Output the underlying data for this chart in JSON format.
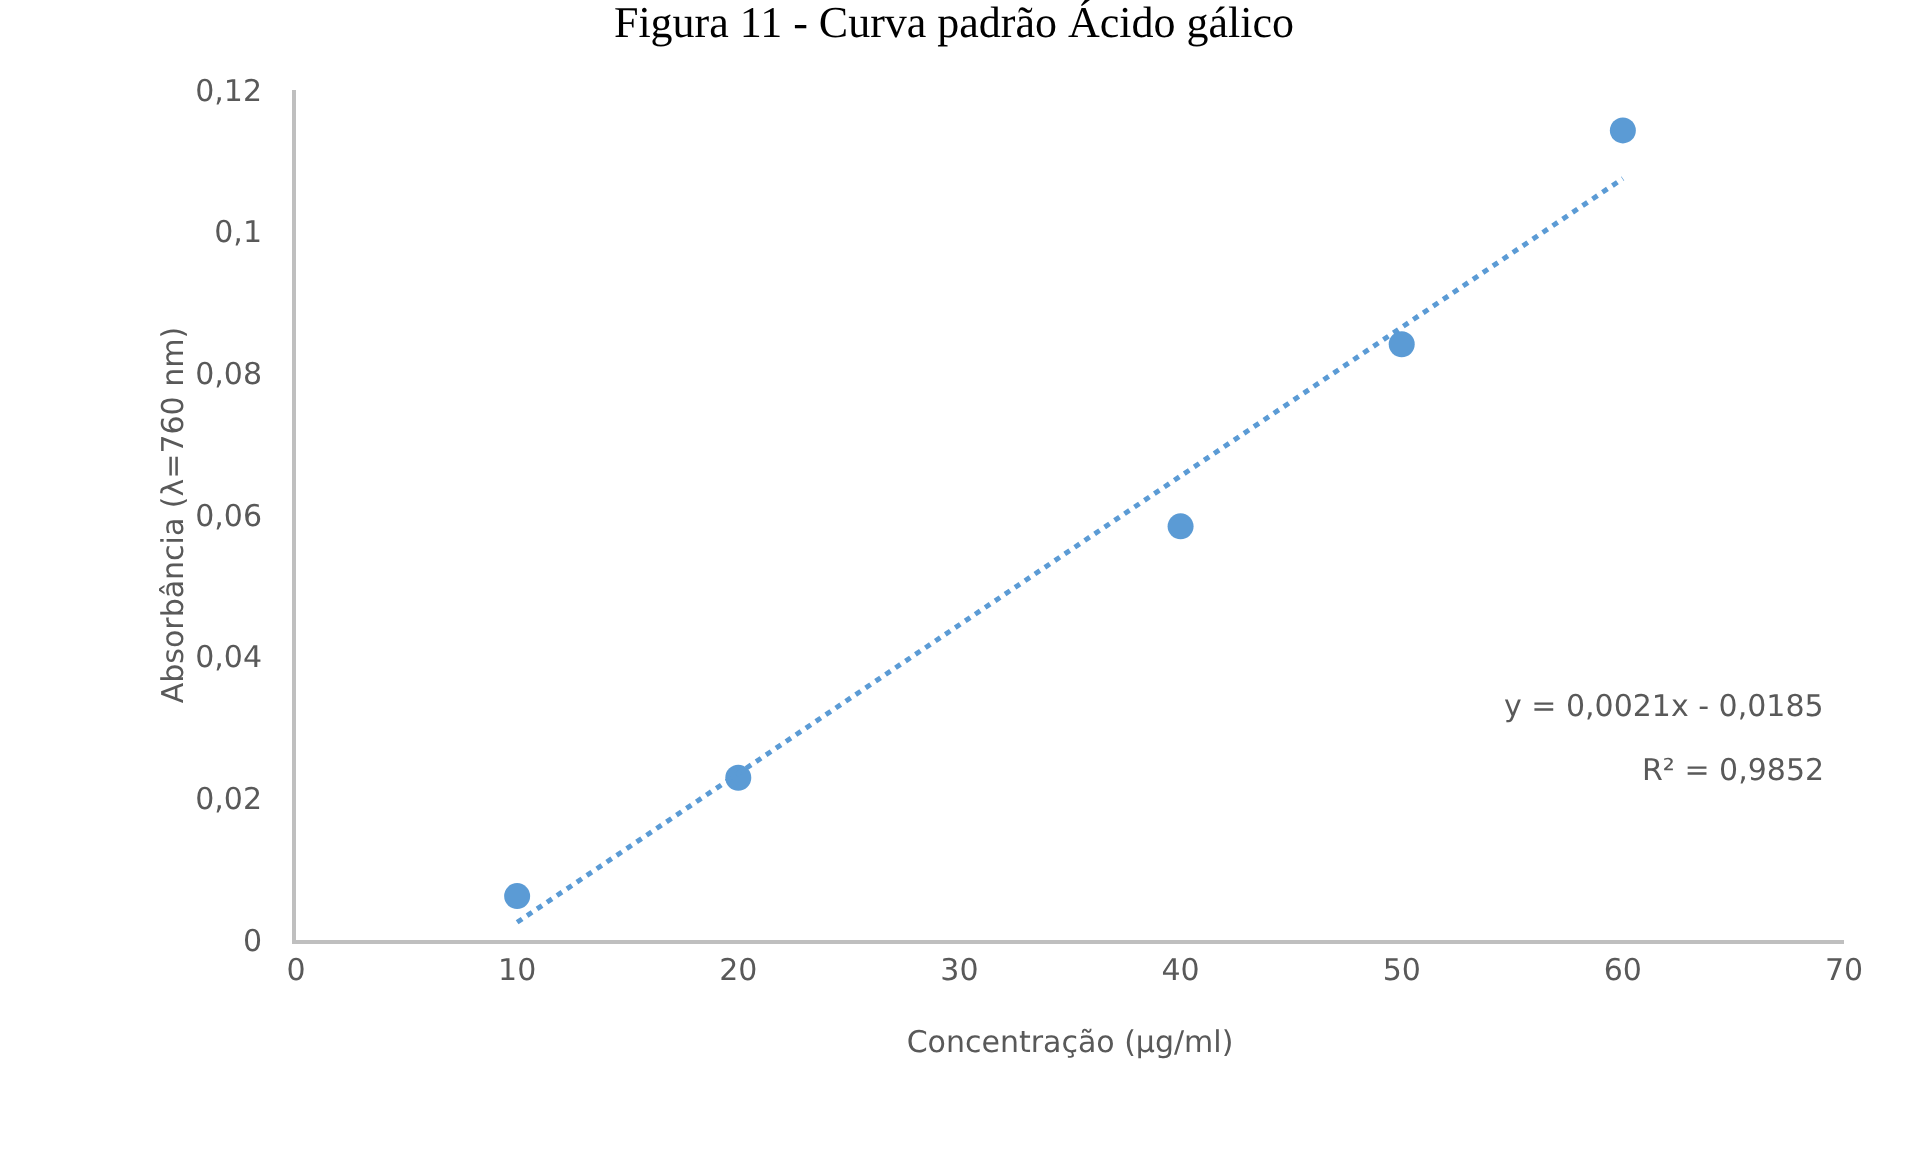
{
  "chart_data": {
    "type": "scatter",
    "title": "Figura 11 - Curva padrão Ácido gálico",
    "xlabel": "Concentração (µg/ml)",
    "ylabel": "Absorbância (λ=760 nm)",
    "x": [
      10,
      20,
      40,
      50,
      60
    ],
    "series": [
      {
        "color": "#5b9bd5",
        "values": [
          0.0062,
          0.0229,
          0.0584,
          0.0841,
          0.1143
        ],
        "marker": "circle"
      },
      {
        "type": "line",
        "color": "#5b9bd5",
        "x": [
          10,
          60
        ],
        "values": [
          0.0025,
          0.1075
        ],
        "line_style": "dotted",
        "marker": "none"
      }
    ],
    "xlim": [
      0,
      70
    ],
    "xticks": [
      0,
      10,
      20,
      30,
      40,
      50,
      60,
      70
    ],
    "ylim": [
      0,
      0.12
    ],
    "yticks": [
      {
        "value": 0,
        "label": "0"
      },
      {
        "value": 0.02,
        "label": "0,02"
      },
      {
        "value": 0.04,
        "label": "0,04"
      },
      {
        "value": 0.06,
        "label": "0,06"
      },
      {
        "value": 0.08,
        "label": "0,08"
      },
      {
        "value": 0.1,
        "label": "0,1"
      },
      {
        "value": 0.12,
        "label": "0,12"
      }
    ],
    "grid": false,
    "annotations": [
      "y = 0,0021x - 0,0185",
      "R² = 0,9852"
    ]
  }
}
